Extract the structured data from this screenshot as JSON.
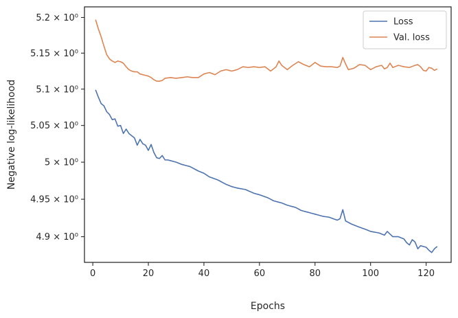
{
  "chart_data": {
    "type": "line",
    "xlabel": "Epochs",
    "ylabel": "Negative log-likelihood",
    "xlim": [
      -3,
      129
    ],
    "ylim": [
      4.866,
      5.215
    ],
    "yscale": "log",
    "grid": false,
    "legend_position": "top-right",
    "x_ticks": [
      0,
      20,
      40,
      60,
      80,
      100,
      120
    ],
    "y_ticks": [
      {
        "value": 4.9,
        "label": "4.9 × 10⁰"
      },
      {
        "value": 4.95,
        "label": "4.95 × 10⁰"
      },
      {
        "value": 5.0,
        "label": "5 × 10⁰"
      },
      {
        "value": 5.05,
        "label": "5.05 × 10⁰"
      },
      {
        "value": 5.1,
        "label": "5.1 × 10⁰"
      },
      {
        "value": 5.15,
        "label": "5.15 × 10⁰"
      },
      {
        "value": 5.2,
        "label": "5.2 × 10⁰"
      }
    ],
    "series": [
      {
        "name": "Loss",
        "color": "#4c72b0",
        "anchors": [
          [
            1,
            5.099
          ],
          [
            2,
            5.089
          ],
          [
            3,
            5.08
          ],
          [
            4,
            5.077
          ],
          [
            5,
            5.069
          ],
          [
            6,
            5.065
          ],
          [
            7,
            5.058
          ],
          [
            8,
            5.059
          ],
          [
            9,
            5.049
          ],
          [
            10,
            5.05
          ],
          [
            11,
            5.039
          ],
          [
            12,
            5.045
          ],
          [
            13,
            5.039
          ],
          [
            14,
            5.036
          ],
          [
            15,
            5.033
          ],
          [
            16,
            5.023
          ],
          [
            17,
            5.031
          ],
          [
            18,
            5.025
          ],
          [
            19,
            5.023
          ],
          [
            20,
            5.016
          ],
          [
            21,
            5.024
          ],
          [
            22,
            5.013
          ],
          [
            23,
            5.006
          ],
          [
            24,
            5.005
          ],
          [
            25,
            5.009
          ],
          [
            26,
            5.003
          ],
          [
            27,
            5.003
          ],
          [
            30,
            5.0
          ],
          [
            32,
            4.997
          ],
          [
            35,
            4.994
          ],
          [
            38,
            4.988
          ],
          [
            40,
            4.985
          ],
          [
            42,
            4.98
          ],
          [
            45,
            4.976
          ],
          [
            48,
            4.97
          ],
          [
            50,
            4.967
          ],
          [
            52,
            4.965
          ],
          [
            55,
            4.963
          ],
          [
            58,
            4.958
          ],
          [
            60,
            4.956
          ],
          [
            63,
            4.952
          ],
          [
            65,
            4.948
          ],
          [
            68,
            4.945
          ],
          [
            70,
            4.942
          ],
          [
            73,
            4.939
          ],
          [
            75,
            4.935
          ],
          [
            78,
            4.932
          ],
          [
            80,
            4.93
          ],
          [
            83,
            4.927
          ],
          [
            85,
            4.926
          ],
          [
            88,
            4.922
          ],
          [
            89,
            4.924
          ],
          [
            90,
            4.936
          ],
          [
            91,
            4.921
          ],
          [
            93,
            4.917
          ],
          [
            95,
            4.914
          ],
          [
            98,
            4.91
          ],
          [
            100,
            4.907
          ],
          [
            103,
            4.905
          ],
          [
            105,
            4.902
          ],
          [
            106,
            4.907
          ],
          [
            108,
            4.9
          ],
          [
            110,
            4.9
          ],
          [
            112,
            4.897
          ],
          [
            113,
            4.892
          ],
          [
            114,
            4.889
          ],
          [
            115,
            4.896
          ],
          [
            116,
            4.893
          ],
          [
            117,
            4.884
          ],
          [
            118,
            4.888
          ],
          [
            120,
            4.886
          ],
          [
            121,
            4.882
          ],
          [
            122,
            4.879
          ],
          [
            123,
            4.884
          ],
          [
            124,
            4.887
          ]
        ],
        "values": []
      },
      {
        "name": "Val. loss",
        "color": "#dd8452",
        "anchors": [
          [
            1,
            5.197
          ],
          [
            2,
            5.184
          ],
          [
            3,
            5.173
          ],
          [
            4,
            5.16
          ],
          [
            5,
            5.148
          ],
          [
            6,
            5.142
          ],
          [
            7,
            5.139
          ],
          [
            8,
            5.137
          ],
          [
            9,
            5.139
          ],
          [
            10,
            5.138
          ],
          [
            11,
            5.136
          ],
          [
            12,
            5.131
          ],
          [
            13,
            5.127
          ],
          [
            14,
            5.125
          ],
          [
            15,
            5.124
          ],
          [
            16,
            5.124
          ],
          [
            17,
            5.121
          ],
          [
            18,
            5.12
          ],
          [
            19,
            5.119
          ],
          [
            20,
            5.118
          ],
          [
            21,
            5.116
          ],
          [
            22,
            5.113
          ],
          [
            23,
            5.111
          ],
          [
            24,
            5.111
          ],
          [
            25,
            5.112
          ],
          [
            26,
            5.115
          ],
          [
            28,
            5.116
          ],
          [
            30,
            5.115
          ],
          [
            32,
            5.116
          ],
          [
            34,
            5.117
          ],
          [
            36,
            5.116
          ],
          [
            38,
            5.116
          ],
          [
            40,
            5.121
          ],
          [
            42,
            5.123
          ],
          [
            44,
            5.12
          ],
          [
            46,
            5.125
          ],
          [
            48,
            5.127
          ],
          [
            50,
            5.125
          ],
          [
            52,
            5.127
          ],
          [
            54,
            5.131
          ],
          [
            56,
            5.13
          ],
          [
            58,
            5.131
          ],
          [
            60,
            5.13
          ],
          [
            62,
            5.131
          ],
          [
            64,
            5.125
          ],
          [
            66,
            5.131
          ],
          [
            67,
            5.139
          ],
          [
            68,
            5.133
          ],
          [
            70,
            5.127
          ],
          [
            72,
            5.133
          ],
          [
            74,
            5.138
          ],
          [
            76,
            5.134
          ],
          [
            78,
            5.131
          ],
          [
            80,
            5.137
          ],
          [
            82,
            5.132
          ],
          [
            84,
            5.131
          ],
          [
            86,
            5.131
          ],
          [
            88,
            5.13
          ],
          [
            89,
            5.132
          ],
          [
            90,
            5.144
          ],
          [
            91,
            5.135
          ],
          [
            92,
            5.127
          ],
          [
            94,
            5.129
          ],
          [
            96,
            5.134
          ],
          [
            98,
            5.133
          ],
          [
            100,
            5.127
          ],
          [
            102,
            5.131
          ],
          [
            104,
            5.133
          ],
          [
            105,
            5.128
          ],
          [
            106,
            5.13
          ],
          [
            107,
            5.136
          ],
          [
            108,
            5.13
          ],
          [
            110,
            5.133
          ],
          [
            112,
            5.131
          ],
          [
            114,
            5.13
          ],
          [
            116,
            5.133
          ],
          [
            117,
            5.134
          ],
          [
            118,
            5.131
          ],
          [
            119,
            5.126
          ],
          [
            120,
            5.125
          ],
          [
            121,
            5.13
          ],
          [
            122,
            5.129
          ],
          [
            123,
            5.126
          ],
          [
            124,
            5.128
          ]
        ],
        "values": []
      }
    ]
  }
}
